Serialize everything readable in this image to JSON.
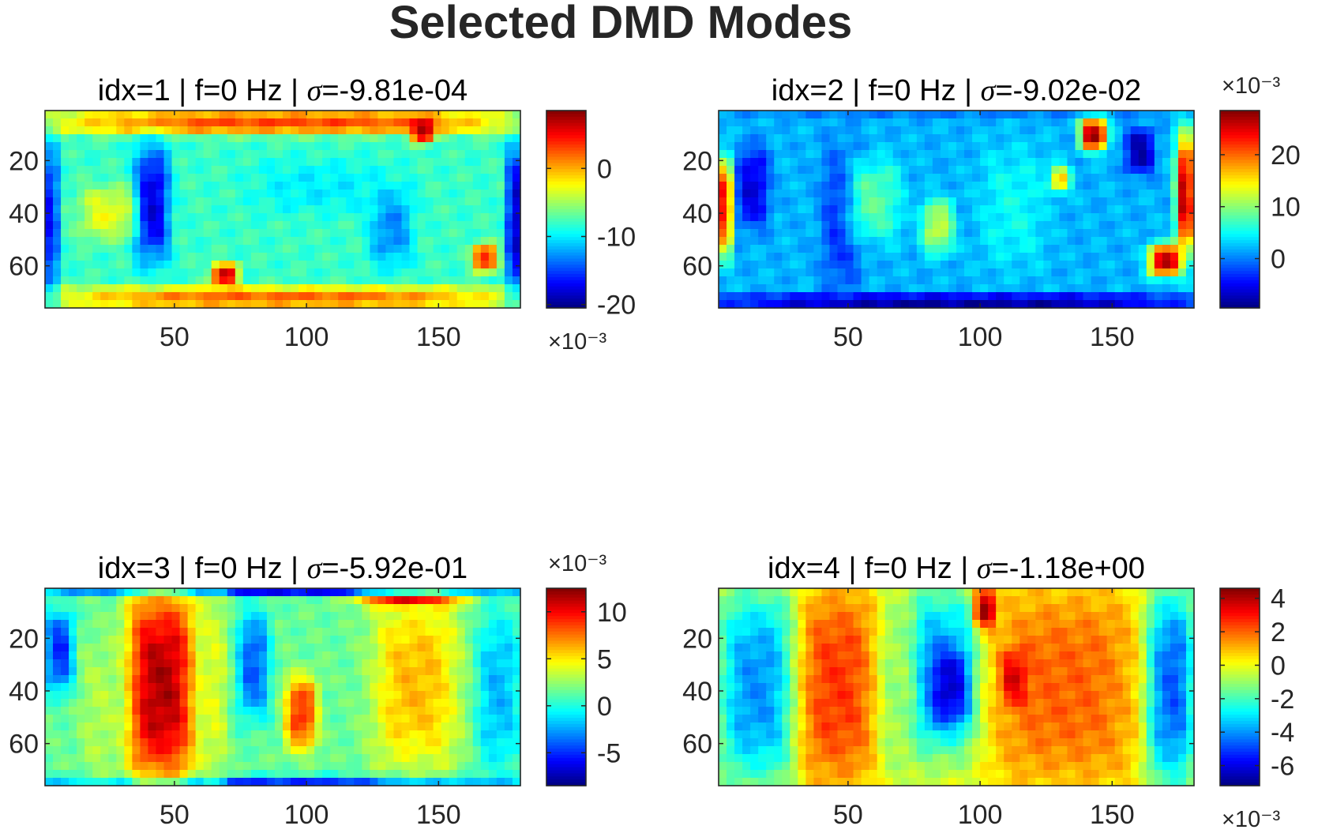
{
  "figure": {
    "title": "Selected DMD Modes"
  },
  "chart_data": [
    {
      "type": "heatmap",
      "title": "idx=1 | f=0 Hz | σ=-9.81e-04",
      "title_parts": {
        "prefix": "idx=1 | f=0 Hz | ",
        "symbol": "σ",
        "value": "=-9.81e-04"
      },
      "xlim": [
        1,
        181
      ],
      "ylim": [
        1,
        76
      ],
      "y_reversed": true,
      "xticks": [
        50,
        100,
        150
      ],
      "xtick_labels": [
        "50",
        "100",
        "150"
      ],
      "yticks": [
        20,
        40,
        60
      ],
      "ytick_labels": [
        "20",
        "40",
        "60"
      ],
      "colormap": "jet",
      "clim": [
        -20.5,
        8.5
      ],
      "colorbar_ticks": [
        0,
        -10,
        -20
      ],
      "colorbar_labels": [
        "0",
        "-10",
        "-20"
      ],
      "colorbar_exponent": "×10⁻³",
      "colorbar_exponent_position": "below",
      "base": -8,
      "features": [
        {
          "x": [
            1,
            181
          ],
          "y": [
            1,
            10
          ],
          "v": 3
        },
        {
          "x": [
            1,
            181
          ],
          "y": [
            68,
            76
          ],
          "v": 2
        },
        {
          "x": [
            140,
            148
          ],
          "y": [
            4,
            13
          ],
          "v": 8.5
        },
        {
          "x": [
            35,
            48
          ],
          "y": [
            15,
            58
          ],
          "v": -18
        },
        {
          "x": [
            1,
            6
          ],
          "y": [
            15,
            70
          ],
          "v": -17
        },
        {
          "x": [
            176,
            181
          ],
          "y": [
            15,
            70
          ],
          "v": -19
        },
        {
          "x": [
            14,
            35
          ],
          "y": [
            30,
            50
          ],
          "v": -3
        },
        {
          "x": [
            64,
            74
          ],
          "y": [
            59,
            68
          ],
          "v": 6
        },
        {
          "x": [
            163,
            172
          ],
          "y": [
            52,
            62
          ],
          "v": 5
        },
        {
          "x": [
            124,
            140
          ],
          "y": [
            30,
            60
          ],
          "v": -13
        },
        {
          "x": [
            80,
            130
          ],
          "y": [
            20,
            40
          ],
          "v": -10
        }
      ]
    },
    {
      "type": "heatmap",
      "title": "idx=2 | f=0 Hz | σ=-9.02e-02",
      "title_parts": {
        "prefix": "idx=2 | f=0 Hz | ",
        "symbol": "σ",
        "value": "=-9.02e-02"
      },
      "xlim": [
        1,
        181
      ],
      "ylim": [
        1,
        76
      ],
      "y_reversed": true,
      "xticks": [
        50,
        100,
        150
      ],
      "xtick_labels": [
        "50",
        "100",
        "150"
      ],
      "yticks": [
        20,
        40,
        60
      ],
      "ytick_labels": [
        "20",
        "40",
        "60"
      ],
      "colormap": "jet",
      "clim": [
        -9.5,
        28.5
      ],
      "colorbar_ticks": [
        20,
        10,
        0
      ],
      "colorbar_labels": [
        "20",
        "10",
        "0"
      ],
      "colorbar_exponent": "×10⁻³",
      "colorbar_exponent_position": "above",
      "base": 2,
      "features": [
        {
          "x": [
            1,
            181
          ],
          "y": [
            71,
            76
          ],
          "v": -9
        },
        {
          "x": [
            1,
            181
          ],
          "y": [
            1,
            4
          ],
          "v": 0
        },
        {
          "x": [
            1,
            6
          ],
          "y": [
            20,
            55
          ],
          "v": 25
        },
        {
          "x": [
            174,
            181
          ],
          "y": [
            10,
            55
          ],
          "v": 26
        },
        {
          "x": [
            164,
            176
          ],
          "y": [
            52,
            64
          ],
          "v": 27
        },
        {
          "x": [
            138,
            148
          ],
          "y": [
            4,
            16
          ],
          "v": 28
        },
        {
          "x": [
            155,
            166
          ],
          "y": [
            8,
            25
          ],
          "v": -8
        },
        {
          "x": [
            8,
            20
          ],
          "y": [
            15,
            45
          ],
          "v": -6
        },
        {
          "x": [
            40,
            55
          ],
          "y": [
            15,
            70
          ],
          "v": -3
        },
        {
          "x": [
            126,
            134
          ],
          "y": [
            22,
            32
          ],
          "v": 16
        },
        {
          "x": [
            78,
            90
          ],
          "y": [
            35,
            55
          ],
          "v": 12
        },
        {
          "x": [
            50,
            70
          ],
          "y": [
            20,
            50
          ],
          "v": 8
        },
        {
          "x": [
            100,
            125
          ],
          "y": [
            15,
            60
          ],
          "v": 5
        }
      ]
    },
    {
      "type": "heatmap",
      "title": "idx=3 | f=0 Hz | σ=-5.92e-01",
      "title_parts": {
        "prefix": "idx=3 | f=0 Hz | ",
        "symbol": "σ",
        "value": "=-5.92e-01"
      },
      "xlim": [
        1,
        181
      ],
      "ylim": [
        1,
        76
      ],
      "y_reversed": true,
      "xticks": [
        50,
        100,
        150
      ],
      "xtick_labels": [
        "50",
        "100",
        "150"
      ],
      "yticks": [
        20,
        40,
        60
      ],
      "ytick_labels": [
        "20",
        "40",
        "60"
      ],
      "colormap": "jet",
      "clim": [
        -8.5,
        12.5
      ],
      "colorbar_ticks": [
        10,
        5,
        0,
        -5
      ],
      "colorbar_labels": [
        "10",
        "5",
        "0",
        "-5"
      ],
      "colorbar_exponent": "×10⁻³",
      "colorbar_exponent_position": "above",
      "base": 1.5,
      "features": [
        {
          "x": [
            1,
            181
          ],
          "y": [
            1,
            3
          ],
          "v": -6
        },
        {
          "x": [
            1,
            181
          ],
          "y": [
            72,
            76
          ],
          "v": -5
        },
        {
          "x": [
            32,
            58
          ],
          "y": [
            1,
            76
          ],
          "v": 11.5
        },
        {
          "x": [
            1,
            12
          ],
          "y": [
            10,
            40
          ],
          "v": -5
        },
        {
          "x": [
            74,
            86
          ],
          "y": [
            10,
            50
          ],
          "v": -4
        },
        {
          "x": [
            164,
            181
          ],
          "y": [
            10,
            70
          ],
          "v": -2
        },
        {
          "x": [
            92,
            104
          ],
          "y": [
            35,
            62
          ],
          "v": 9
        },
        {
          "x": [
            125,
            158
          ],
          "y": [
            4,
            70
          ],
          "v": 6
        },
        {
          "x": [
            120,
            158
          ],
          "y": [
            3,
            8
          ],
          "v": 10
        },
        {
          "x": [
            60,
            70
          ],
          "y": [
            1,
            76
          ],
          "v": 4
        },
        {
          "x": [
            14,
            30
          ],
          "y": [
            20,
            76
          ],
          "v": 3
        }
      ]
    },
    {
      "type": "heatmap",
      "title": "idx=4 | f=0 Hz | σ=-1.18e+00",
      "title_parts": {
        "prefix": "idx=4 | f=0 Hz | ",
        "symbol": "σ",
        "value": "=-1.18e+00"
      },
      "xlim": [
        1,
        181
      ],
      "ylim": [
        1,
        76
      ],
      "y_reversed": true,
      "xticks": [
        50,
        100,
        150
      ],
      "xtick_labels": [
        "50",
        "100",
        "150"
      ],
      "yticks": [
        20,
        40,
        60
      ],
      "ytick_labels": [
        "20",
        "40",
        "60"
      ],
      "colormap": "jet",
      "clim": [
        -7.2,
        4.6
      ],
      "colorbar_ticks": [
        4,
        2,
        0,
        -2,
        -4,
        -6
      ],
      "colorbar_labels": [
        "4",
        "2",
        "0",
        "-2",
        "-4",
        "-6"
      ],
      "colorbar_exponent": "×10⁻³",
      "colorbar_exponent_position": "below",
      "base": 0,
      "features": [
        {
          "x": [
            1,
            30
          ],
          "y": [
            1,
            76
          ],
          "v": -4
        },
        {
          "x": [
            162,
            181
          ],
          "y": [
            1,
            76
          ],
          "v": -5
        },
        {
          "x": [
            32,
            60
          ],
          "y": [
            1,
            76
          ],
          "v": 2.5
        },
        {
          "x": [
            72,
            100
          ],
          "y": [
            1,
            65
          ],
          "v": -4
        },
        {
          "x": [
            82,
            96
          ],
          "y": [
            25,
            52
          ],
          "v": -6.5
        },
        {
          "x": [
            104,
            160
          ],
          "y": [
            1,
            76
          ],
          "v": 2
        },
        {
          "x": [
            98,
            106
          ],
          "y": [
            1,
            16
          ],
          "v": 4.2
        },
        {
          "x": [
            108,
            118
          ],
          "y": [
            25,
            45
          ],
          "v": 3.5
        },
        {
          "x": [
            62,
            75
          ],
          "y": [
            1,
            76
          ],
          "v": -1
        }
      ]
    }
  ]
}
